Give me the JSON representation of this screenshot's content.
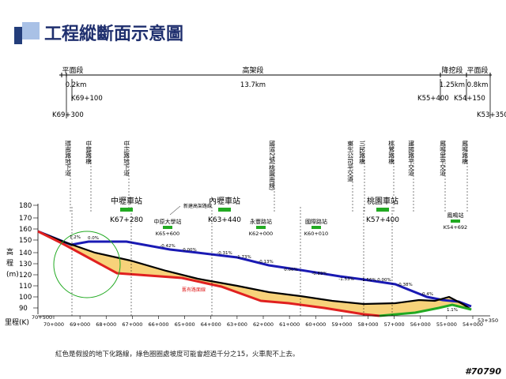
{
  "title": "工程縱斷面示意圖",
  "segments": [
    {
      "name": "平面段",
      "length": "0.2km"
    },
    {
      "name": "高架段",
      "length": "13.7km"
    },
    {
      "name": "降挖段",
      "length": "1.25km"
    },
    {
      "name": "平面段",
      "length": "0.8km"
    }
  ],
  "chainage_top": [
    "K69+300",
    "K69+100",
    "K55+400",
    "K54+150",
    "K53+350"
  ],
  "vertical_labels": [
    "環南路地下道",
    "中豐路橋",
    "中正路地下道",
    "國道2號(桃園南線)",
    "東生公司平交道",
    "三民路橋",
    "桃鶯路橋",
    "建國路平交道",
    "鳳鳴里平交道",
    "鳳鳴路橋"
  ],
  "stations": [
    {
      "name": "中壢車站",
      "km": "K67+280"
    },
    {
      "name": "內壢車站",
      "km": "K63+440"
    },
    {
      "name": "桃園車站",
      "km": "K57+400"
    }
  ],
  "small_stations": [
    {
      "name": "中原大學站",
      "km": "K65+600"
    },
    {
      "name": "永豐路站",
      "km": "K62+000"
    },
    {
      "name": "國際路站",
      "km": "K60+010"
    },
    {
      "name": "鳳鳴站",
      "km": "K54+692"
    }
  ],
  "line_labels": {
    "new": "新建高架路線",
    "existing": "舊有路面線"
  },
  "y_axis": {
    "label_chars": [
      "高",
      "程",
      "(m)"
    ],
    "ticks": [
      180,
      170,
      160,
      150,
      140,
      130,
      120,
      110,
      100,
      90
    ]
  },
  "x_axis": {
    "label": "里程(K)",
    "start": "70+500",
    "end": "53+350",
    "ticks": [
      "70+000",
      "69+000",
      "68+000",
      "67+000",
      "66+000",
      "65+000",
      "64+000",
      "63+000",
      "62+000",
      "61+000",
      "60+000",
      "59+000",
      "58+000",
      "57+000",
      "56+000",
      "55+000",
      "54+000"
    ]
  },
  "grades": [
    "1.2%",
    "0.0%",
    "-0.42%",
    "0.00%",
    "-0.31%",
    "-1.73%",
    "-0.13%",
    "0.00%",
    "-0.89%",
    "-1.53%",
    "-1.56%",
    "0.00%",
    "-0.38%",
    "-0.4%",
    "1.1%"
  ],
  "caption": "紅色是假設的地下化路線，綠色圈圈處坡度可能會超過千分之15，火車爬不上去。",
  "stamp": "#70790",
  "colors": {
    "elevated": "#1a1ab4",
    "underground": "#e02020",
    "ground_fill": "#f7d27a",
    "ground_line": "#000000",
    "green": "#22aa22"
  }
}
